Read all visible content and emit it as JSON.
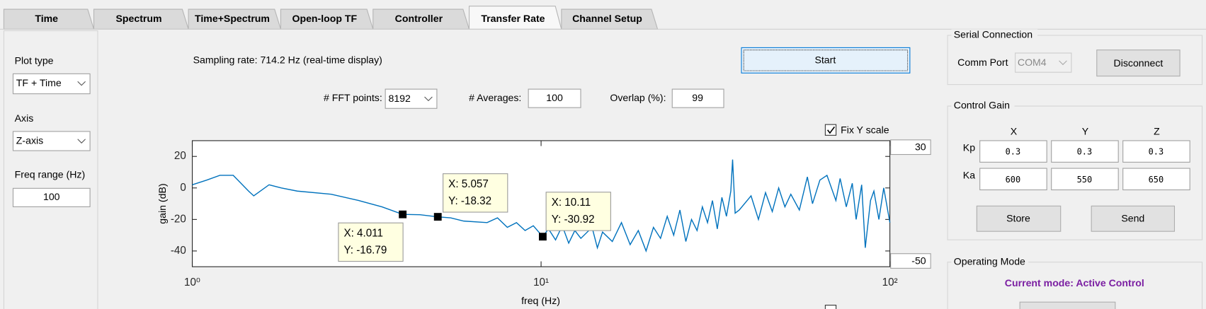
{
  "tabs": [
    "Time",
    "Spectrum",
    "Time+Spectrum",
    "Open-loop TF",
    "Controller",
    "Transfer Rate",
    "Channel Setup"
  ],
  "active_tab": 5,
  "left_panel": {
    "plot_type_label": "Plot type",
    "plot_type": "TF + Time",
    "axis_label": "Axis",
    "axis": "Z-axis",
    "freq_range_label": "Freq range (Hz)",
    "freq_range": "100"
  },
  "controls": {
    "sampling": "Sampling rate: 714.2 Hz (real-time display)",
    "start": "Start",
    "fft_label": "# FFT points:",
    "fft": "8192",
    "avg_label": "# Averages:",
    "avg": "100",
    "overlap_label": "Overlap (%):",
    "overlap": "99",
    "fix_y": "Fix Y scale"
  },
  "serial": {
    "title": "Serial Connection",
    "comm_label": "Comm Port",
    "comm": "COM4",
    "disconnect": "Disconnect"
  },
  "gain": {
    "title": "Control Gain",
    "columns": [
      "X",
      "Y",
      "Z"
    ],
    "rows": [
      {
        "label": "Kp",
        "values": [
          "0.3",
          "0.3",
          "0.3"
        ]
      },
      {
        "label": "Ka",
        "values": [
          "600",
          "550",
          "650"
        ]
      }
    ],
    "store": "Store",
    "send": "Send"
  },
  "mode": {
    "title": "Operating Mode",
    "current": "Current mode: Active Control"
  },
  "chart_data": {
    "type": "line",
    "x_label": "freq (Hz)",
    "y_label": "gain (dB)",
    "xscale": "log",
    "xlim": [
      1,
      100
    ],
    "ylim": [
      -50,
      30
    ],
    "xticks": [
      {
        "value": 1,
        "label": "10⁰"
      },
      {
        "value": 10,
        "label": "10¹"
      },
      {
        "value": 100,
        "label": "10²"
      }
    ],
    "yticks": [
      20,
      0,
      -20,
      -40
    ],
    "grid": false,
    "series": [
      {
        "color": "#0072bd",
        "x": [
          1,
          1.1,
          1.2,
          1.31,
          1.45,
          1.5,
          1.66,
          1.8,
          2,
          2.5,
          3,
          3.5,
          4.011,
          4.5,
          5.057,
          5.5,
          6,
          7,
          7.5,
          8,
          8.5,
          9,
          9.5,
          10.11,
          10.5,
          11,
          11.5,
          12,
          12.5,
          13,
          14,
          14.5,
          15,
          16,
          17,
          18,
          19,
          20,
          21,
          22,
          23,
          24,
          25,
          26,
          27,
          28,
          29,
          30,
          31,
          32,
          33,
          34,
          35,
          35.4,
          36,
          37,
          40,
          42,
          44,
          46,
          48,
          50,
          52,
          55,
          58,
          60,
          63,
          66,
          70,
          72,
          75,
          78,
          80,
          83,
          85,
          88,
          90,
          93,
          96,
          100
        ],
        "values": [
          2,
          5,
          8,
          8,
          -2,
          -5,
          2,
          0,
          -2,
          -4,
          -8,
          -12,
          -16.79,
          -17,
          -18.32,
          -19,
          -21,
          -22,
          -19,
          -25,
          -22,
          -27,
          -24,
          -30.92,
          -26,
          -33,
          -24,
          -35,
          -27,
          -32,
          -25,
          -38,
          -28,
          -34,
          -22,
          -36,
          -27,
          -40,
          -25,
          -32,
          -18,
          -30,
          -14,
          -34,
          -20,
          -27,
          -12,
          -22,
          -8,
          -26,
          -6,
          -18,
          -2,
          18,
          -16,
          -14,
          -5,
          -20,
          -3,
          -15,
          0,
          -12,
          -4,
          -14,
          7,
          -10,
          5,
          8,
          -8,
          6,
          -12,
          3,
          -20,
          2,
          -38,
          -8,
          -2,
          -20,
          0,
          -22
        ]
      }
    ],
    "datatips": [
      {
        "x": 4.011,
        "y": -16.79,
        "x_label": "X: 4.011",
        "y_label": "Y: -16.79"
      },
      {
        "x": 5.057,
        "y": -18.32,
        "x_label": "X: 5.057",
        "y_label": "Y: -18.32"
      },
      {
        "x": 10.11,
        "y": -30.92,
        "x_label": "X: 10.11",
        "y_label": "Y: -30.92"
      }
    ]
  }
}
